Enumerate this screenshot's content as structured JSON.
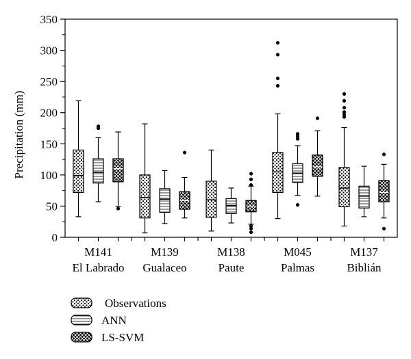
{
  "chart_data": {
    "type": "box",
    "ylabel": "Precipitation (mm)",
    "ylim": [
      0,
      350
    ],
    "yticks": [
      0,
      50,
      100,
      150,
      200,
      250,
      300,
      350
    ],
    "categories": [
      {
        "code": "M141",
        "name": "El Labrado"
      },
      {
        "code": "M139",
        "name": "Gualaceo"
      },
      {
        "code": "M138",
        "name": "Paute"
      },
      {
        "code": "M045",
        "name": "Palmas"
      },
      {
        "code": "M137",
        "name": "Biblián"
      }
    ],
    "series": [
      {
        "name": "Observations",
        "pattern": "dots",
        "boxes": [
          {
            "whisker_low": 33,
            "q1": 72,
            "median": 99,
            "q3": 140,
            "whisker_high": 219,
            "outliers": []
          },
          {
            "whisker_low": 7,
            "q1": 31,
            "median": 64,
            "q3": 100,
            "whisker_high": 182,
            "outliers": []
          },
          {
            "whisker_low": 10,
            "q1": 32,
            "median": 60,
            "q3": 90,
            "whisker_high": 140,
            "outliers": []
          },
          {
            "whisker_low": 30,
            "q1": 72,
            "median": 105,
            "q3": 136,
            "whisker_high": 198,
            "outliers": [
              243,
              255,
              293,
              312
            ]
          },
          {
            "whisker_low": 18,
            "q1": 49,
            "median": 79,
            "q3": 112,
            "whisker_high": 176,
            "outliers": [
              193,
              197,
              201,
              208,
              219,
              230
            ]
          }
        ]
      },
      {
        "name": "ANN",
        "pattern": "lines",
        "boxes": [
          {
            "whisker_low": 57,
            "q1": 87,
            "median": 104,
            "q3": 126,
            "whisker_high": 160,
            "outliers": [
              175,
              178
            ]
          },
          {
            "whisker_low": 22,
            "q1": 40,
            "median": 61,
            "q3": 78,
            "whisker_high": 107,
            "outliers": []
          },
          {
            "whisker_low": 23,
            "q1": 38,
            "median": 51,
            "q3": 62,
            "whisker_high": 79,
            "outliers": []
          },
          {
            "whisker_low": 67,
            "q1": 88,
            "median": 103,
            "q3": 118,
            "whisker_high": 147,
            "outliers": [
              52,
              158,
              162,
              166
            ]
          },
          {
            "whisker_low": 33,
            "q1": 47,
            "median": 66,
            "q3": 82,
            "whisker_high": 114,
            "outliers": []
          }
        ]
      },
      {
        "name": "LS-SVM",
        "pattern": "crosshatch",
        "boxes": [
          {
            "whisker_low": 49,
            "q1": 89,
            "median": 110,
            "q3": 126,
            "whisker_high": 169,
            "outliers": [
              46
            ]
          },
          {
            "whisker_low": 31,
            "q1": 45,
            "median": 59,
            "q3": 73,
            "whisker_high": 96,
            "outliers": [
              136
            ]
          },
          {
            "whisker_low": 21,
            "q1": 41,
            "median": 50,
            "q3": 59,
            "whisker_high": 82,
            "outliers": [
              8,
              14,
              18,
              84,
              93,
              102
            ]
          },
          {
            "whisker_low": 66,
            "q1": 98,
            "median": 113,
            "q3": 132,
            "whisker_high": 171,
            "outliers": [
              191
            ]
          },
          {
            "whisker_low": 31,
            "q1": 57,
            "median": 72,
            "q3": 91,
            "whisker_high": 117,
            "outliers": [
              14,
              133
            ]
          }
        ]
      }
    ],
    "legend_position": "bottom-left"
  }
}
